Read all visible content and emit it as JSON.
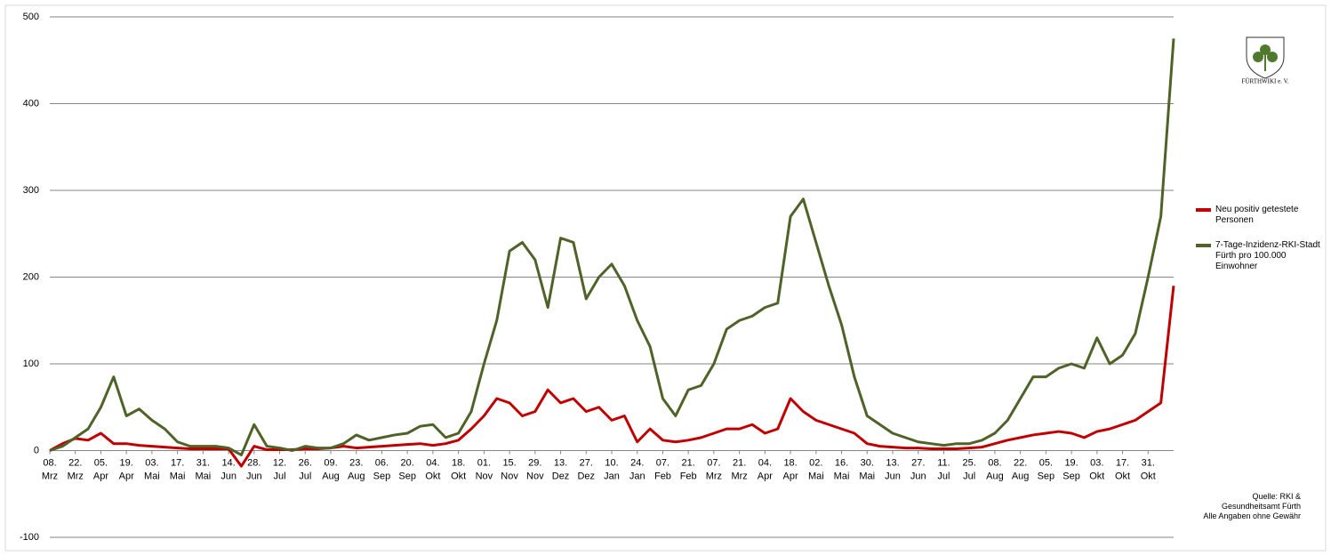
{
  "chart_data": {
    "type": "line",
    "categories": [
      [
        "08.",
        "Mrz"
      ],
      null,
      [
        "22.",
        "Mrz"
      ],
      null,
      [
        "05.",
        "Apr"
      ],
      null,
      [
        "19.",
        "Apr"
      ],
      null,
      [
        "03.",
        "Mai"
      ],
      null,
      [
        "17.",
        "Mai"
      ],
      null,
      [
        "31.",
        "Mai"
      ],
      null,
      [
        "14.",
        "Jun"
      ],
      null,
      [
        "28.",
        "Jun"
      ],
      null,
      [
        "12.",
        "Jul"
      ],
      null,
      [
        "26.",
        "Jul"
      ],
      null,
      [
        "09.",
        "Aug"
      ],
      null,
      [
        "23.",
        "Aug"
      ],
      null,
      [
        "06.",
        "Sep"
      ],
      null,
      [
        "20.",
        "Sep"
      ],
      null,
      [
        "04.",
        "Okt"
      ],
      null,
      [
        "18.",
        "Okt"
      ],
      null,
      [
        "01.",
        "Nov"
      ],
      null,
      [
        "15.",
        "Nov"
      ],
      null,
      [
        "29.",
        "Nov"
      ],
      null,
      [
        "13.",
        "Dez"
      ],
      null,
      [
        "27.",
        "Dez"
      ],
      null,
      [
        "10.",
        "Jan"
      ],
      null,
      [
        "24.",
        "Jan"
      ],
      null,
      [
        "07.",
        "Feb"
      ],
      null,
      [
        "21.",
        "Feb"
      ],
      null,
      [
        "07.",
        "Mrz"
      ],
      null,
      [
        "21.",
        "Mrz"
      ],
      null,
      [
        "04.",
        "Apr"
      ],
      null,
      [
        "18.",
        "Apr"
      ],
      null,
      [
        "02.",
        "Mai"
      ],
      null,
      [
        "16.",
        "Mai"
      ],
      null,
      [
        "30.",
        "Mai"
      ],
      null,
      [
        "13.",
        "Jun"
      ],
      null,
      [
        "27.",
        "Jun"
      ],
      null,
      [
        "11.",
        "Jul"
      ],
      null,
      [
        "25.",
        "Jul"
      ],
      null,
      [
        "08.",
        "Aug"
      ],
      null,
      [
        "22.",
        "Aug"
      ],
      null,
      [
        "05.",
        "Sep"
      ],
      null,
      [
        "19.",
        "Sep"
      ],
      null,
      [
        "03.",
        "Okt"
      ],
      null,
      [
        "17.",
        "Okt"
      ],
      null,
      [
        "31.",
        "Okt"
      ],
      null,
      null
    ],
    "series": [
      {
        "name": "Neu positiv getestete Personen",
        "color": "#c00000",
        "values": [
          0,
          8,
          14,
          12,
          20,
          8,
          8,
          6,
          5,
          4,
          3,
          2,
          2,
          2,
          2,
          -18,
          5,
          1,
          1,
          1,
          2,
          2,
          3,
          5,
          3,
          4,
          5,
          6,
          7,
          8,
          6,
          8,
          12,
          25,
          40,
          60,
          55,
          40,
          45,
          70,
          55,
          60,
          45,
          50,
          35,
          40,
          10,
          25,
          12,
          10,
          12,
          15,
          20,
          25,
          25,
          30,
          20,
          25,
          60,
          45,
          35,
          30,
          25,
          20,
          8,
          5,
          4,
          3,
          3,
          2,
          2,
          2,
          3,
          4,
          8,
          12,
          15,
          18,
          20,
          22,
          20,
          15,
          22,
          25,
          30,
          35,
          45,
          55,
          190
        ]
      },
      {
        "name": "7-Tage-Inzidenz-RKI-Stadt Fürth pro 100.000 Einwohner",
        "color": "#4f6228",
        "values": [
          0,
          5,
          15,
          25,
          50,
          85,
          40,
          48,
          35,
          25,
          10,
          5,
          5,
          5,
          3,
          -5,
          30,
          5,
          3,
          0,
          5,
          3,
          3,
          8,
          18,
          12,
          15,
          18,
          20,
          28,
          30,
          15,
          20,
          45,
          100,
          150,
          230,
          240,
          220,
          165,
          245,
          240,
          175,
          200,
          215,
          190,
          150,
          120,
          60,
          40,
          70,
          75,
          100,
          140,
          150,
          155,
          165,
          170,
          270,
          290,
          240,
          190,
          145,
          85,
          40,
          30,
          20,
          15,
          10,
          8,
          6,
          8,
          8,
          12,
          20,
          35,
          60,
          85,
          85,
          95,
          100,
          95,
          130,
          100,
          110,
          135,
          200,
          270,
          475
        ]
      }
    ],
    "ylim": [
      -100,
      500
    ],
    "yticks": [
      -100,
      0,
      100,
      200,
      300,
      400,
      500
    ],
    "grid": true,
    "legend": "right",
    "annotation": [
      "Quelle: RKI &",
      "Gesundheitsamt Fürth",
      "Alle Angaben ohne Gewähr"
    ],
    "logo_text": "FÜRTHWIKI e. V."
  }
}
